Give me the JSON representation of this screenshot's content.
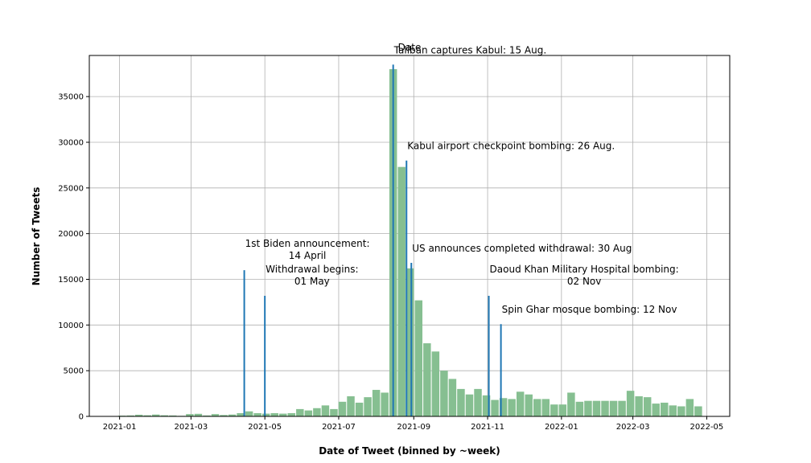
{
  "chart_data": {
    "type": "bar",
    "title": "Date",
    "xlabel": "Date of Tweet (binned by ~week)",
    "ylabel": "Number of Tweets",
    "grid": true,
    "xlim": [
      "2020-12-07",
      "2022-05-20"
    ],
    "ylim": [
      0,
      39500
    ],
    "x_ticks": [
      "2021-01",
      "2021-03",
      "2021-05",
      "2021-07",
      "2021-09",
      "2021-11",
      "2022-01",
      "2022-03",
      "2022-05"
    ],
    "x_tick_dates": [
      "2021-01-01",
      "2021-03-01",
      "2021-05-01",
      "2021-07-01",
      "2021-09-01",
      "2021-11-01",
      "2022-01-01",
      "2022-03-01",
      "2022-05-01"
    ],
    "y_ticks": [
      0,
      5000,
      10000,
      15000,
      20000,
      25000,
      30000,
      35000
    ],
    "bar_color": "#86bf91",
    "bar_dates": [
      "2021-01-03",
      "2021-01-10",
      "2021-01-17",
      "2021-01-24",
      "2021-01-31",
      "2021-02-07",
      "2021-02-14",
      "2021-02-21",
      "2021-02-28",
      "2021-03-07",
      "2021-03-14",
      "2021-03-21",
      "2021-03-28",
      "2021-04-04",
      "2021-04-11",
      "2021-04-18",
      "2021-04-25",
      "2021-05-02",
      "2021-05-09",
      "2021-05-16",
      "2021-05-23",
      "2021-05-30",
      "2021-06-06",
      "2021-06-13",
      "2021-06-20",
      "2021-06-27",
      "2021-07-04",
      "2021-07-11",
      "2021-07-18",
      "2021-07-25",
      "2021-08-01",
      "2021-08-08",
      "2021-08-15",
      "2021-08-22",
      "2021-08-29",
      "2021-09-05",
      "2021-09-12",
      "2021-09-19",
      "2021-09-26",
      "2021-10-03",
      "2021-10-10",
      "2021-10-17",
      "2021-10-24",
      "2021-10-31",
      "2021-11-07",
      "2021-11-14",
      "2021-11-21",
      "2021-11-28",
      "2021-12-05",
      "2021-12-12",
      "2021-12-19",
      "2021-12-26",
      "2022-01-02",
      "2022-01-09",
      "2022-01-16",
      "2022-01-23",
      "2022-01-30",
      "2022-02-06",
      "2022-02-13",
      "2022-02-20",
      "2022-02-27",
      "2022-03-06",
      "2022-03-13",
      "2022-03-20",
      "2022-03-27",
      "2022-04-03",
      "2022-04-10",
      "2022-04-17",
      "2022-04-24"
    ],
    "values": [
      80,
      100,
      180,
      120,
      200,
      120,
      100,
      60,
      250,
      280,
      100,
      250,
      150,
      200,
      350,
      550,
      350,
      300,
      350,
      300,
      350,
      800,
      650,
      900,
      1200,
      800,
      1600,
      2200,
      1500,
      2100,
      2900,
      2600,
      38000,
      27300,
      16200,
      12700,
      8000,
      7100,
      5000,
      4100,
      3000,
      2400,
      3000,
      2300,
      1800,
      2000,
      1900,
      2700,
      2400,
      1900,
      1900,
      1300,
      1300,
      2600,
      1600,
      1700,
      1700,
      1700,
      1700,
      1700,
      2800,
      2200,
      2100,
      1400,
      1500,
      1200,
      1100,
      1900,
      1100
    ],
    "events": [
      {
        "date": "2021-04-14",
        "value": 16000,
        "label": [
          "1st Biden announcement:",
          "14 April"
        ]
      },
      {
        "date": "2021-05-01",
        "value": 13200,
        "label": [
          "Withdrawal begins:",
          "01 May"
        ]
      },
      {
        "date": "2021-08-15",
        "value": 38500,
        "label": [
          "Taliban captures Kabul: 15 Aug."
        ]
      },
      {
        "date": "2021-08-26",
        "value": 28000,
        "label": [
          "Kabul airport checkpoint bombing: 26 Aug."
        ]
      },
      {
        "date": "2021-08-30",
        "value": 16800,
        "label": [
          "US announces completed withdrawal: 30 Aug"
        ]
      },
      {
        "date": "2021-11-02",
        "value": 13200,
        "label": [
          "Daoud Khan Military Hospital bombing:",
          "02 Nov"
        ]
      },
      {
        "date": "2021-11-12",
        "value": 10100,
        "label": [
          "Spin Ghar mosque bombing: 12 Nov"
        ]
      }
    ],
    "event_color": "#1f77b4"
  }
}
